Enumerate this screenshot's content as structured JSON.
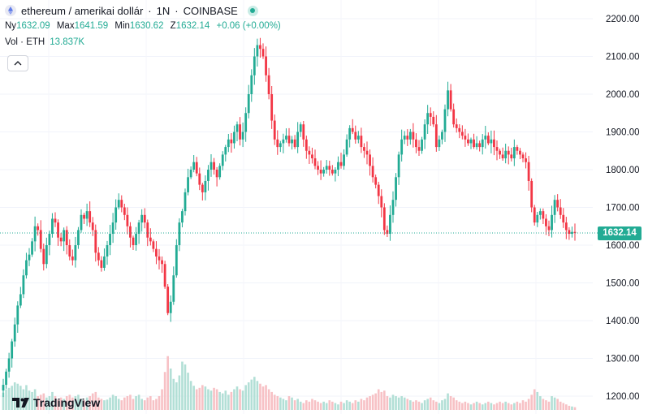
{
  "header": {
    "symbol": "ethereum / amerikai dollár",
    "separator1": "·",
    "interval": "1N",
    "separator2": "·",
    "exchange": "COINBASE"
  },
  "ohlc": {
    "open_label": "Ny",
    "open": "1632.09",
    "high_label": "Max",
    "high": "1641.59",
    "low_label": "Min",
    "low": "1630.62",
    "close_label": "Z",
    "close": "1632.14",
    "change": "+0.06 (+0.00%)"
  },
  "volume": {
    "label": "Vol · ETH",
    "value": "13.837K"
  },
  "price_tag": "1632.14",
  "logo": {
    "text": "TradingView"
  },
  "colors": {
    "up": "#22ab94",
    "down": "#f23645",
    "up_vol": "#b2dfd6",
    "down_vol": "#f7c1c5"
  },
  "chart_data": {
    "type": "candlestick",
    "y_axis": {
      "min": 1200,
      "max": 2200,
      "ticks": [
        "1200.00",
        "1300.00",
        "1400.00",
        "1500.00",
        "1600.00",
        "1700.00",
        "1800.00",
        "1900.00",
        "2000.00",
        "2100.00",
        "2200.00"
      ]
    },
    "last_price": 1632.14,
    "grid": true,
    "series": [
      {
        "name": "price",
        "close": [
          1230,
          1265,
          1300,
          1345,
          1390,
          1440,
          1470,
          1520,
          1560,
          1575,
          1610,
          1650,
          1640,
          1590,
          1550,
          1600,
          1630,
          1670,
          1660,
          1620,
          1610,
          1640,
          1600,
          1570,
          1560,
          1600,
          1640,
          1680,
          1670,
          1690,
          1660,
          1640,
          1580,
          1560,
          1540,
          1570,
          1600,
          1630,
          1660,
          1700,
          1720,
          1700,
          1680,
          1650,
          1620,
          1600,
          1630,
          1660,
          1680,
          1660,
          1620,
          1610,
          1590,
          1570,
          1560,
          1550,
          1490,
          1420,
          1450,
          1520,
          1600,
          1660,
          1690,
          1740,
          1780,
          1800,
          1820,
          1790,
          1760,
          1740,
          1770,
          1800,
          1820,
          1800,
          1780,
          1810,
          1840,
          1860,
          1880,
          1870,
          1900,
          1920,
          1880,
          1900,
          1950,
          2000,
          2050,
          2100,
          2130,
          2120,
          2100,
          2050,
          2000,
          1930,
          1880,
          1860,
          1870,
          1880,
          1890,
          1870,
          1880,
          1860,
          1900,
          1920,
          1880,
          1850,
          1840,
          1830,
          1810,
          1800,
          1790,
          1800,
          1810,
          1800,
          1790,
          1800,
          1820,
          1810,
          1840,
          1880,
          1910,
          1900,
          1880,
          1890,
          1860,
          1850,
          1840,
          1810,
          1780,
          1760,
          1730,
          1700,
          1640,
          1630,
          1680,
          1720,
          1780,
          1840,
          1880,
          1890,
          1880,
          1900,
          1880,
          1860,
          1850,
          1880,
          1920,
          1950,
          1940,
          1920,
          1860,
          1880,
          1900,
          1960,
          2010,
          1960,
          1920,
          1910,
          1900,
          1890,
          1880,
          1870,
          1880,
          1860,
          1870,
          1860,
          1880,
          1890,
          1870,
          1880,
          1860,
          1850,
          1840,
          1830,
          1850,
          1840,
          1830,
          1860,
          1850,
          1840,
          1830,
          1820,
          1770,
          1700,
          1660,
          1680,
          1690,
          1670,
          1650,
          1640,
          1680,
          1720,
          1700,
          1680,
          1660,
          1640,
          1630,
          1635,
          1632
        ]
      },
      {
        "name": "volume",
        "values": [
          0.25,
          0.3,
          0.32,
          0.35,
          0.4,
          0.38,
          0.35,
          0.3,
          0.36,
          0.28,
          0.26,
          0.3,
          0.2,
          0.22,
          0.24,
          0.18,
          0.2,
          0.26,
          0.2,
          0.15,
          0.18,
          0.16,
          0.2,
          0.22,
          0.18,
          0.2,
          0.22,
          0.16,
          0.14,
          0.18,
          0.2,
          0.24,
          0.26,
          0.18,
          0.16,
          0.14,
          0.15,
          0.18,
          0.22,
          0.2,
          0.16,
          0.14,
          0.18,
          0.2,
          0.22,
          0.16,
          0.2,
          0.22,
          0.16,
          0.14,
          0.18,
          0.2,
          0.14,
          0.16,
          0.2,
          0.3,
          0.55,
          0.78,
          0.6,
          0.45,
          0.4,
          0.5,
          0.7,
          0.66,
          0.54,
          0.42,
          0.35,
          0.3,
          0.32,
          0.36,
          0.34,
          0.3,
          0.28,
          0.32,
          0.3,
          0.26,
          0.24,
          0.28,
          0.22,
          0.26,
          0.3,
          0.34,
          0.3,
          0.28,
          0.36,
          0.4,
          0.44,
          0.48,
          0.42,
          0.38,
          0.34,
          0.36,
          0.3,
          0.26,
          0.22,
          0.2,
          0.18,
          0.16,
          0.14,
          0.2,
          0.18,
          0.14,
          0.16,
          0.12,
          0.1,
          0.14,
          0.12,
          0.16,
          0.14,
          0.12,
          0.1,
          0.12,
          0.1,
          0.14,
          0.12,
          0.1,
          0.08,
          0.12,
          0.1,
          0.14,
          0.12,
          0.1,
          0.14,
          0.12,
          0.16,
          0.14,
          0.18,
          0.2,
          0.22,
          0.24,
          0.3,
          0.26,
          0.28,
          0.2,
          0.18,
          0.22,
          0.2,
          0.18,
          0.2,
          0.18,
          0.16,
          0.14,
          0.12,
          0.14,
          0.12,
          0.1,
          0.14,
          0.16,
          0.18,
          0.14,
          0.12,
          0.1,
          0.14,
          0.16,
          0.24,
          0.2,
          0.18,
          0.14,
          0.12,
          0.1,
          0.12,
          0.1,
          0.08,
          0.1,
          0.12,
          0.1,
          0.08,
          0.1,
          0.12,
          0.1,
          0.08,
          0.1,
          0.12,
          0.1,
          0.12,
          0.1,
          0.08,
          0.1,
          0.12,
          0.1,
          0.14,
          0.12,
          0.16,
          0.22,
          0.3,
          0.26,
          0.2,
          0.16,
          0.14,
          0.12,
          0.2,
          0.18,
          0.16,
          0.12,
          0.1,
          0.08,
          0.06,
          0.05,
          0.04
        ]
      }
    ]
  }
}
